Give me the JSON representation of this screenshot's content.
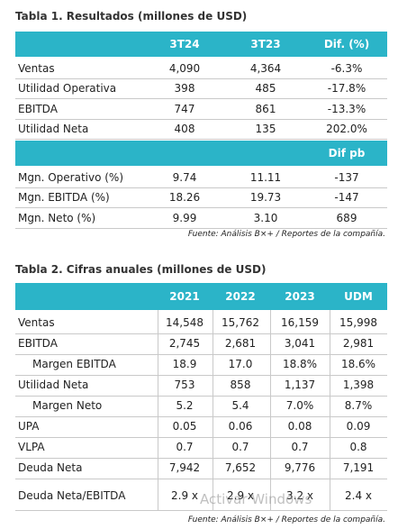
{
  "table1": {
    "title": "Tabla 1. Resultados (millones de USD)",
    "columns": [
      "3T24",
      "3T23",
      "Dif. (%)"
    ],
    "rows": [
      {
        "label": "Ventas",
        "cells": [
          "4,090",
          "4,364",
          "-6.3%"
        ]
      },
      {
        "label": "Utilidad Operativa",
        "cells": [
          "398",
          "485",
          "-17.8%"
        ]
      },
      {
        "label": "EBITDA",
        "cells": [
          "747",
          "861",
          "-13.3%"
        ]
      },
      {
        "label": "Utilidad Neta",
        "cells": [
          "408",
          "135",
          "202.0%"
        ]
      }
    ],
    "subheader": "Dif pb",
    "rows2": [
      {
        "label": "Mgn. Operativo (%)",
        "cells": [
          "9.74",
          "11.11",
          "-137"
        ]
      },
      {
        "label": "Mgn. EBITDA (%)",
        "cells": [
          "18.26",
          "19.73",
          "-147"
        ]
      },
      {
        "label": "Mgn. Neto (%)",
        "cells": [
          "9.99",
          "3.10",
          "689"
        ]
      }
    ],
    "source": "Fuente: Análisis B×+ / Reportes de la compañía."
  },
  "table2": {
    "title": "Tabla 2. Cifras anuales (millones de USD)",
    "columns": [
      "2021",
      "2022",
      "2023",
      "UDM"
    ],
    "rows": [
      {
        "label": "Ventas",
        "cells": [
          "14,548",
          "15,762",
          "16,159",
          "15,998"
        ]
      },
      {
        "label": "EBITDA",
        "cells": [
          "2,745",
          "2,681",
          "3,041",
          "2,981"
        ]
      },
      {
        "label": "Margen EBITDA",
        "cells": [
          "18.9",
          "17.0",
          "18.8%",
          "18.6%"
        ]
      },
      {
        "label": "Utilidad Neta",
        "cells": [
          "753",
          "858",
          "1,137",
          "1,398"
        ]
      },
      {
        "label": "Margen Neto",
        "cells": [
          "5.2",
          "5.4",
          "7.0%",
          "8.7%"
        ]
      },
      {
        "label": "UPA",
        "cells": [
          "0.05",
          "0.06",
          "0.08",
          "0.09"
        ]
      },
      {
        "label": "VLPA",
        "cells": [
          "0.7",
          "0.7",
          "0.7",
          "0.8"
        ]
      },
      {
        "label": "Deuda Neta",
        "cells": [
          "7,942",
          "7,652",
          "9,776",
          "7,191"
        ]
      },
      {
        "label": "Deuda Neta/EBITDA",
        "cells": [
          "2.9 x",
          "2.9 x",
          "3.2 x",
          "2.4 x"
        ]
      }
    ],
    "source": "Fuente: Análisis B×+ / Reportes de la compañía."
  },
  "watermark": "Activar Windows"
}
